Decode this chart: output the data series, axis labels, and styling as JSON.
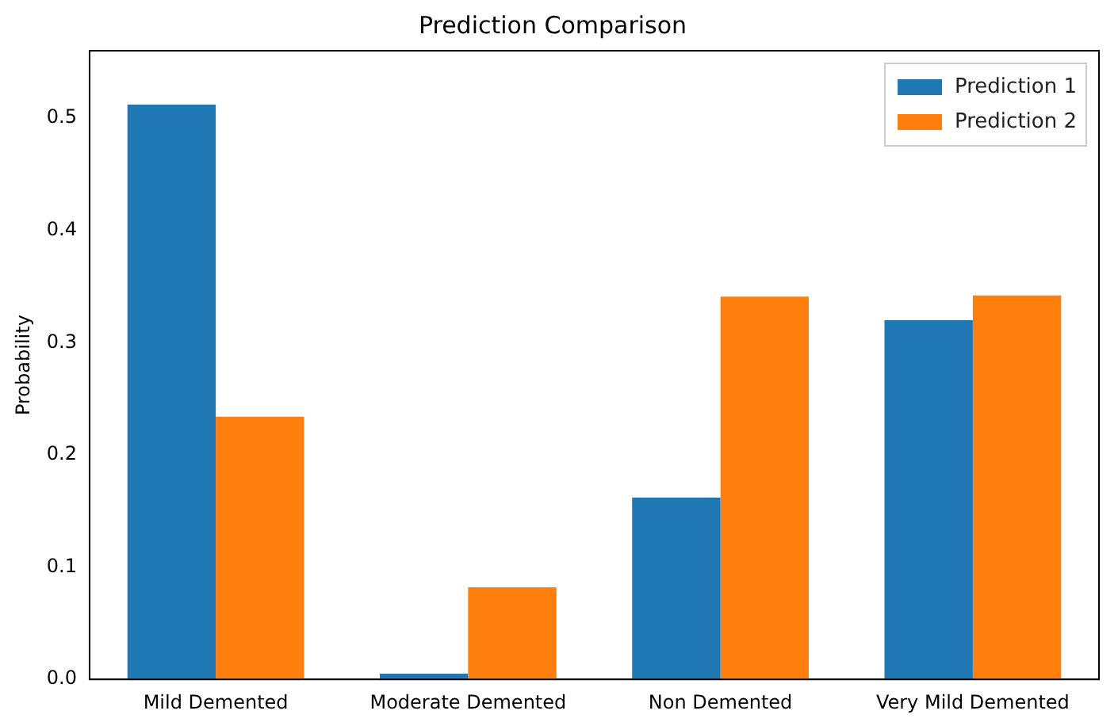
{
  "chart_data": {
    "type": "bar",
    "title": "Prediction Comparison",
    "ylabel": "Probability",
    "categories": [
      "Mild Demented",
      "Moderate Demented",
      "Non Demented",
      "Very Mild Demented"
    ],
    "series": [
      {
        "name": "Prediction 1",
        "color": "#1f77b4",
        "values": [
          0.512,
          0.005,
          0.162,
          0.32
        ]
      },
      {
        "name": "Prediction 2",
        "color": "#ff7f0e",
        "values": [
          0.234,
          0.082,
          0.341,
          0.342
        ]
      }
    ],
    "ylim": [
      0,
      0.56
    ],
    "yticks": [
      {
        "value": 0,
        "label": "0.0"
      },
      {
        "value": 0.1,
        "label": "0.1"
      },
      {
        "value": 0.2,
        "label": "0.2"
      },
      {
        "value": 0.3,
        "label": "0.3"
      },
      {
        "value": 0.4,
        "label": "0.4"
      },
      {
        "value": 0.5,
        "label": "0.5"
      }
    ],
    "grid": false,
    "legend": "top right"
  }
}
